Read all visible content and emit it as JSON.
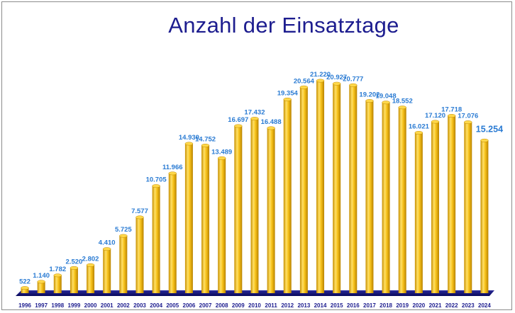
{
  "chart_data": {
    "type": "bar",
    "title": "Anzahl der Einsatztage",
    "xlabel": "",
    "ylabel": "",
    "ylim": [
      0,
      22000
    ],
    "grid": false,
    "legend": "none",
    "categories": [
      "1996",
      "1997",
      "1998",
      "1999",
      "2000",
      "2001",
      "2002",
      "2003",
      "2004",
      "2005",
      "2006",
      "2007",
      "2008",
      "2009",
      "2010",
      "2011",
      "2012",
      "2013",
      "2014",
      "2015",
      "2016",
      "2017",
      "2018",
      "2019",
      "2020",
      "2021",
      "2022",
      "2023",
      "2024"
    ],
    "values": [
      522,
      1140,
      1782,
      2520,
      2802,
      4410,
      5725,
      7577,
      10705,
      11966,
      14930,
      14752,
      13489,
      16697,
      17432,
      16488,
      19354,
      20564,
      21220,
      20927,
      20777,
      19202,
      19048,
      18552,
      16021,
      17120,
      17718,
      17076,
      15254
    ],
    "value_labels": [
      "522",
      "1.140",
      "1.782",
      "2.520",
      "2.802",
      "4.410",
      "5.725",
      "7.577",
      "10.705",
      "11.966",
      "14.930",
      "14.752",
      "13.489",
      "16.697",
      "17.432",
      "16.488",
      "19.354",
      "20.564",
      "21.220",
      "20.927",
      "20.777",
      "19.202",
      "19.048",
      "18.552",
      "16.021",
      "17.120",
      "17.718",
      "17.076",
      "15.254"
    ],
    "colors": {
      "bar": "#f2b400",
      "bar_highlight": "#ffe066",
      "bar_shadow": "#b07d00",
      "floor": "#0c0c6e",
      "value_label": "#2a7bd3",
      "tick_label": "#1d1d8f",
      "title": "#1d1d8f"
    }
  }
}
